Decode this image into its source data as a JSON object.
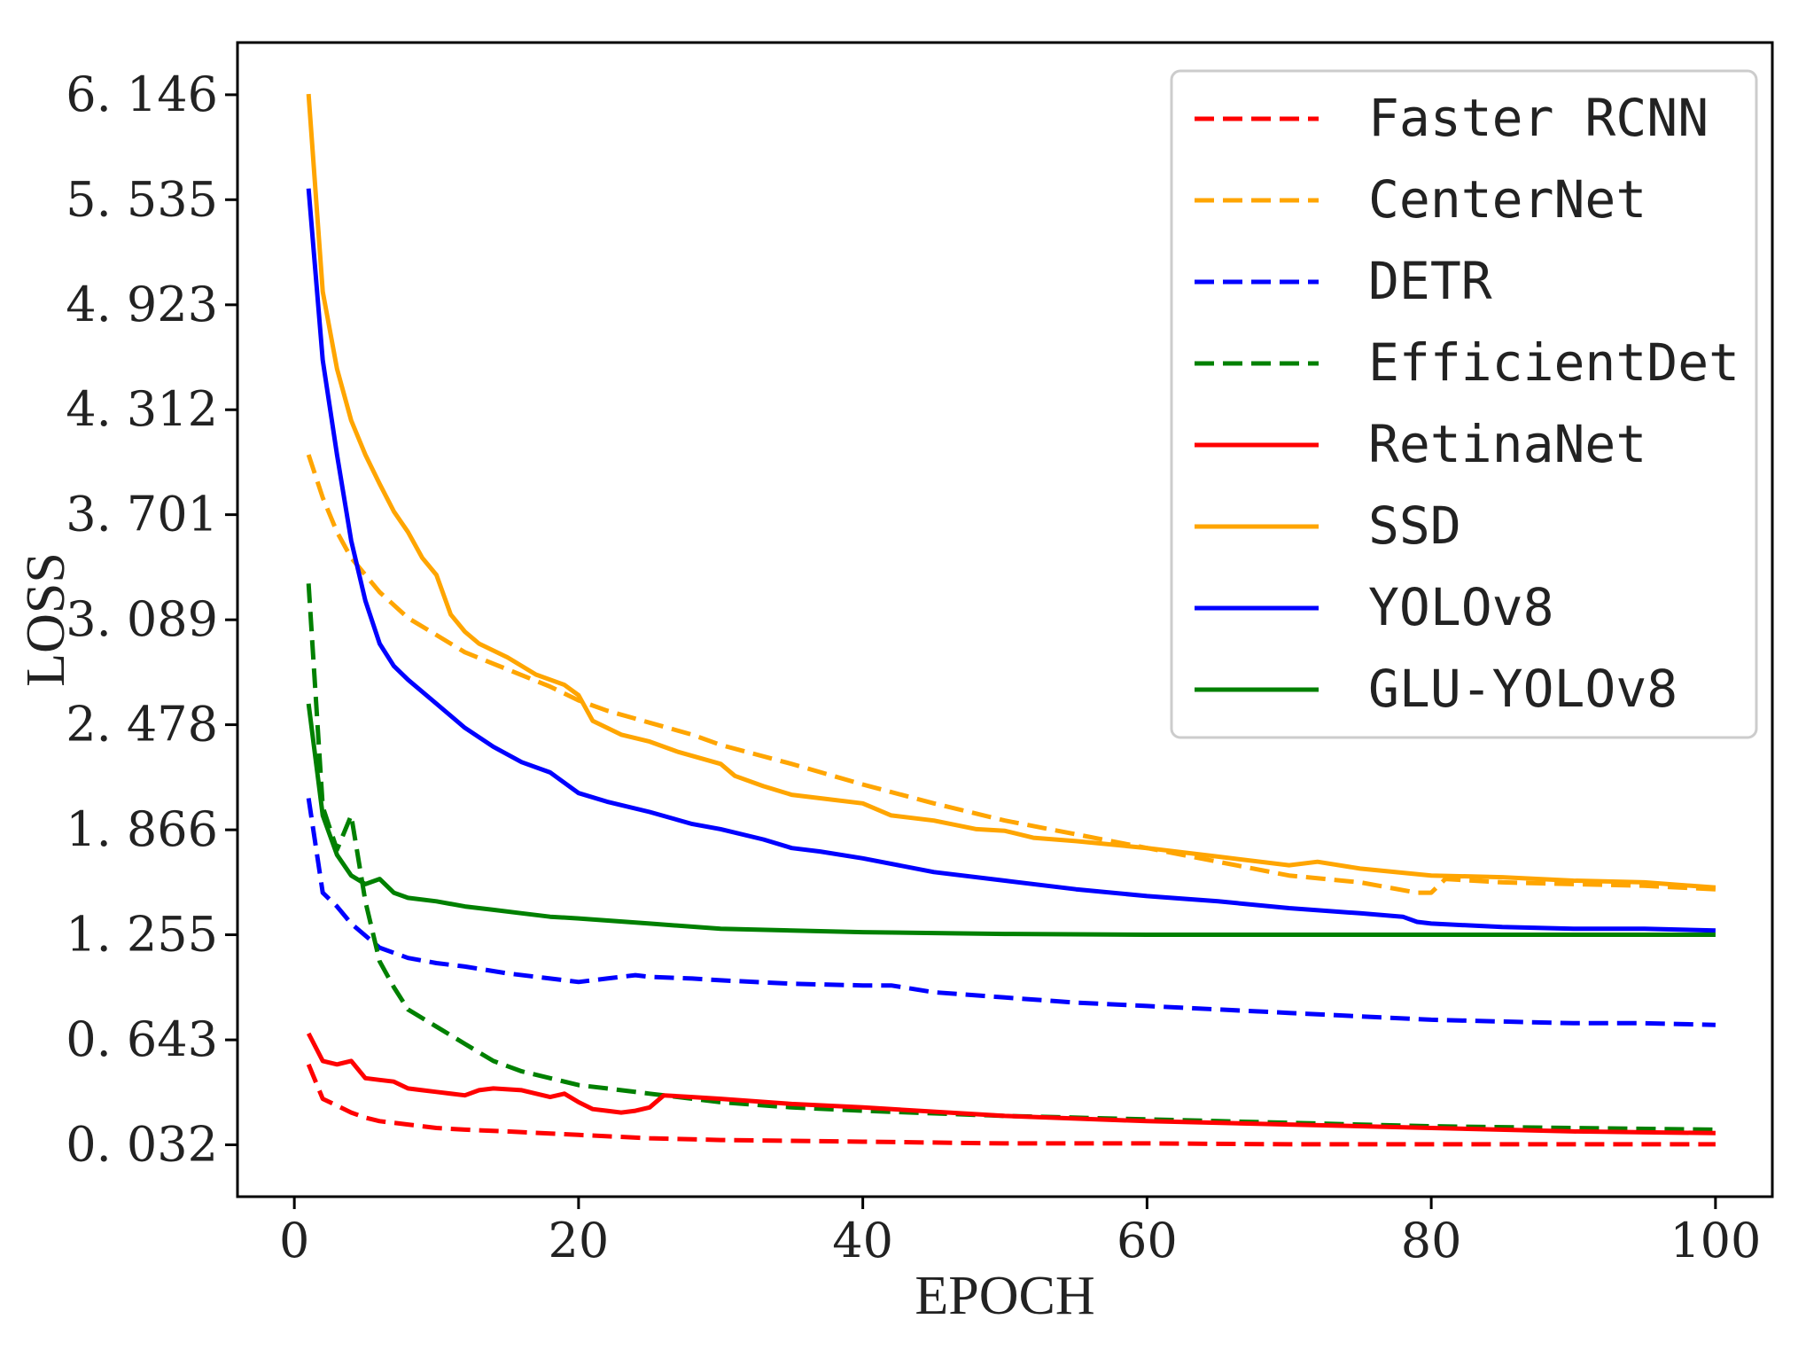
{
  "chart_data": {
    "type": "line",
    "title": "",
    "xlabel": "EPOCH",
    "ylabel": "LOSS",
    "xlim": [
      -4,
      104
    ],
    "ylim": [
      -0.27,
      6.45
    ],
    "x_ticks": [
      0,
      20,
      40,
      60,
      80,
      100
    ],
    "x_tick_labels": [
      "0",
      "20",
      "40",
      "60",
      "80",
      "100"
    ],
    "y_ticks": [
      0.032,
      0.643,
      1.255,
      1.866,
      2.478,
      3.089,
      3.701,
      4.312,
      4.923,
      5.535,
      6.146
    ],
    "y_tick_labels": [
      "0. 032",
      "0. 643",
      "1. 255",
      "1. 866",
      "2. 478",
      "3. 089",
      "3. 701",
      "4. 312",
      "4. 923",
      "5. 535",
      "6. 146"
    ],
    "grid": false,
    "legend_position": "top-right",
    "series": [
      {
        "name": "Faster RCNN",
        "color": "#ff0000",
        "dash": "dashed",
        "x": [
          1,
          2,
          3,
          4,
          5,
          6,
          8,
          10,
          12,
          15,
          20,
          25,
          30,
          40,
          50,
          60,
          70,
          80,
          90,
          100
        ],
        "y": [
          0.5,
          0.3,
          0.26,
          0.22,
          0.19,
          0.17,
          0.15,
          0.13,
          0.12,
          0.11,
          0.09,
          0.07,
          0.06,
          0.05,
          0.04,
          0.04,
          0.035,
          0.035,
          0.035,
          0.035
        ]
      },
      {
        "name": "CenterNet",
        "color": "#ffa500",
        "dash": "dashed",
        "x": [
          1,
          2,
          3,
          4,
          5,
          6,
          8,
          10,
          12,
          15,
          18,
          20,
          22,
          25,
          28,
          30,
          35,
          40,
          45,
          50,
          55,
          60,
          65,
          70,
          75,
          79,
          80,
          81,
          85,
          90,
          95,
          100
        ],
        "y": [
          4.05,
          3.8,
          3.6,
          3.45,
          3.35,
          3.25,
          3.1,
          3.0,
          2.9,
          2.8,
          2.7,
          2.62,
          2.56,
          2.49,
          2.42,
          2.36,
          2.25,
          2.13,
          2.02,
          1.92,
          1.84,
          1.76,
          1.68,
          1.6,
          1.56,
          1.5,
          1.5,
          1.58,
          1.56,
          1.55,
          1.54,
          1.52
        ]
      },
      {
        "name": "DETR",
        "color": "#0000ff",
        "dash": "dashed",
        "x": [
          1,
          2,
          3,
          4,
          5,
          6,
          8,
          10,
          12,
          15,
          18,
          20,
          22,
          24,
          25,
          28,
          30,
          35,
          40,
          42,
          45,
          50,
          55,
          60,
          65,
          70,
          75,
          80,
          85,
          90,
          95,
          100
        ],
        "y": [
          2.05,
          1.5,
          1.42,
          1.32,
          1.25,
          1.18,
          1.12,
          1.09,
          1.07,
          1.03,
          1.0,
          0.98,
          1.0,
          1.02,
          1.01,
          1.0,
          0.99,
          0.97,
          0.96,
          0.96,
          0.92,
          0.89,
          0.86,
          0.84,
          0.82,
          0.8,
          0.78,
          0.76,
          0.75,
          0.74,
          0.74,
          0.73
        ]
      },
      {
        "name": "EfficientDet",
        "color": "#008000",
        "dash": "dashed",
        "x": [
          1,
          2,
          3,
          4,
          5,
          6,
          7,
          8,
          10,
          12,
          14,
          16,
          18,
          20,
          22,
          25,
          30,
          35,
          40,
          50,
          60,
          70,
          80,
          90,
          100
        ],
        "y": [
          3.3,
          2.0,
          1.75,
          1.95,
          1.45,
          1.1,
          0.95,
          0.82,
          0.72,
          0.62,
          0.52,
          0.46,
          0.42,
          0.38,
          0.36,
          0.33,
          0.28,
          0.25,
          0.23,
          0.2,
          0.18,
          0.16,
          0.14,
          0.13,
          0.12
        ]
      },
      {
        "name": "RetinaNet",
        "color": "#ff0000",
        "dash": "solid",
        "x": [
          1,
          2,
          3,
          4,
          5,
          6,
          7,
          8,
          9,
          10,
          12,
          13,
          14,
          16,
          18,
          19,
          20,
          21,
          22,
          23,
          24,
          25,
          26,
          28,
          30,
          35,
          40,
          50,
          60,
          70,
          80,
          90,
          100
        ],
        "y": [
          0.68,
          0.52,
          0.5,
          0.52,
          0.42,
          0.41,
          0.4,
          0.36,
          0.35,
          0.34,
          0.32,
          0.35,
          0.36,
          0.35,
          0.31,
          0.33,
          0.28,
          0.24,
          0.23,
          0.22,
          0.23,
          0.25,
          0.32,
          0.31,
          0.3,
          0.27,
          0.25,
          0.2,
          0.17,
          0.15,
          0.13,
          0.11,
          0.1
        ]
      },
      {
        "name": "SSD",
        "color": "#ffa500",
        "dash": "solid",
        "x": [
          1,
          2,
          3,
          4,
          5,
          6,
          7,
          8,
          9,
          10,
          11,
          12,
          13,
          15,
          17,
          19,
          20,
          21,
          23,
          25,
          27,
          30,
          31,
          33,
          35,
          37,
          40,
          42,
          45,
          48,
          50,
          52,
          55,
          60,
          65,
          70,
          72,
          75,
          80,
          85,
          90,
          95,
          100
        ],
        "y": [
          6.15,
          5.0,
          4.55,
          4.25,
          4.05,
          3.88,
          3.72,
          3.6,
          3.45,
          3.35,
          3.12,
          3.02,
          2.95,
          2.87,
          2.77,
          2.71,
          2.65,
          2.5,
          2.42,
          2.38,
          2.32,
          2.25,
          2.18,
          2.12,
          2.07,
          2.05,
          2.02,
          1.95,
          1.92,
          1.87,
          1.86,
          1.82,
          1.8,
          1.76,
          1.71,
          1.66,
          1.68,
          1.64,
          1.6,
          1.59,
          1.57,
          1.56,
          1.53
        ]
      },
      {
        "name": "YOLOv8",
        "color": "#0000ff",
        "dash": "solid",
        "x": [
          1,
          2,
          3,
          4,
          5,
          6,
          7,
          8,
          10,
          12,
          14,
          16,
          18,
          20,
          22,
          25,
          28,
          30,
          33,
          35,
          37,
          40,
          45,
          50,
          55,
          60,
          65,
          70,
          75,
          78,
          79,
          80,
          85,
          90,
          95,
          100
        ],
        "y": [
          5.6,
          4.6,
          4.05,
          3.55,
          3.2,
          2.95,
          2.82,
          2.74,
          2.6,
          2.46,
          2.35,
          2.26,
          2.2,
          2.08,
          2.03,
          1.97,
          1.9,
          1.87,
          1.81,
          1.76,
          1.74,
          1.7,
          1.62,
          1.57,
          1.52,
          1.48,
          1.45,
          1.41,
          1.38,
          1.36,
          1.33,
          1.32,
          1.3,
          1.29,
          1.29,
          1.28
        ]
      },
      {
        "name": "GLU-YOLOv8",
        "color": "#008000",
        "dash": "solid",
        "x": [
          1,
          2,
          3,
          4,
          5,
          6,
          7,
          8,
          10,
          12,
          14,
          16,
          18,
          20,
          25,
          30,
          40,
          50,
          60,
          70,
          80,
          90,
          100
        ],
        "y": [
          2.6,
          1.95,
          1.72,
          1.6,
          1.55,
          1.58,
          1.5,
          1.47,
          1.45,
          1.42,
          1.4,
          1.38,
          1.36,
          1.35,
          1.32,
          1.29,
          1.27,
          1.26,
          1.255,
          1.255,
          1.255,
          1.255,
          1.255
        ]
      }
    ]
  }
}
